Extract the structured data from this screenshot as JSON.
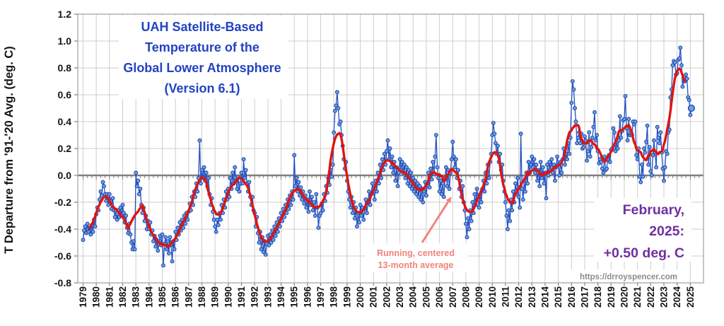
{
  "colors": {
    "title_blue": "#2243C0",
    "line_blue": "#2351C1",
    "marker_fill": "#6FA0DC",
    "marker_stroke": "#1D49B5",
    "red": "#E01410",
    "salmon": "#F0837B",
    "purple": "#7030A0",
    "url_gray": "#8C8C8C",
    "grid": "#CDCDCD",
    "frame": "#A6A6A6",
    "zero_line": "#7F7F7F"
  },
  "chart_data": {
    "type": "line",
    "title_lines": [
      "UAH Satellite-Based",
      "Temperature of the",
      "Global Lower Atmosphere",
      "(Version 6.1)"
    ],
    "title": "UAH Satellite-Based Temperature of the Global Lower Atmosphere (Version 6.1)",
    "ylabel": "T Departure from '91-'20 Avg. (deg. C)",
    "xlabel": "",
    "xlim": [
      1978.6,
      2026.0
    ],
    "ylim": [
      -0.8,
      1.2
    ],
    "grid": true,
    "legend": "none",
    "x_tick_years": [
      1979,
      1980,
      1981,
      1982,
      1983,
      1984,
      1985,
      1986,
      1987,
      1988,
      1989,
      1990,
      1991,
      1992,
      1993,
      1994,
      1995,
      1996,
      1997,
      1998,
      1999,
      2000,
      2001,
      2002,
      2003,
      2004,
      2005,
      2006,
      2007,
      2008,
      2009,
      2010,
      2011,
      2012,
      2013,
      2014,
      2015,
      2016,
      2017,
      2018,
      2019,
      2020,
      2021,
      2022,
      2023,
      2024,
      2025
    ],
    "y_ticks": {
      "values": [
        1.2,
        1.0,
        0.8,
        0.6,
        0.4,
        0.2,
        0.0,
        -0.2,
        -0.4,
        -0.6,
        -0.8
      ],
      "labels": [
        "1.2",
        "1.0",
        "0.8",
        "0.6",
        "0.4",
        "0.2",
        "0.0",
        "-0.2",
        "-0.4",
        "-0.6",
        "-0.8"
      ]
    },
    "series": [
      {
        "name": "Monthly temperature anomaly",
        "style": "line+markers",
        "color_key": "line_blue"
      },
      {
        "name": "Running, centered 13-month average",
        "style": "line",
        "color_key": "red",
        "derived": "centered 13-month mean of monthly series",
        "window": 13
      }
    ],
    "monthly_by_year": {
      "1979": [
        -0.48,
        -0.41,
        -0.38,
        -0.43,
        -0.36,
        -0.42,
        -0.39,
        -0.44,
        -0.37,
        -0.42,
        -0.33,
        -0.38
      ],
      "1980": [
        -0.29,
        -0.24,
        -0.26,
        -0.18,
        -0.12,
        -0.15,
        -0.05,
        -0.08,
        -0.14,
        -0.19,
        -0.14,
        -0.22
      ],
      "1981": [
        -0.14,
        -0.19,
        -0.25,
        -0.17,
        -0.26,
        -0.31,
        -0.26,
        -0.33,
        -0.26,
        -0.31,
        -0.24,
        -0.3
      ],
      "1982": [
        -0.22,
        -0.28,
        -0.35,
        -0.3,
        -0.39,
        -0.43,
        -0.36,
        -0.44,
        -0.5,
        -0.55,
        -0.49,
        -0.55
      ],
      "1983": [
        0.02,
        -0.08,
        -0.04,
        -0.14,
        -0.1,
        -0.22,
        -0.28,
        -0.24,
        -0.34,
        -0.3,
        -0.4,
        -0.34
      ],
      "1984": [
        -0.4,
        -0.35,
        -0.44,
        -0.41,
        -0.49,
        -0.45,
        -0.53,
        -0.48,
        -0.56,
        -0.51,
        -0.45,
        -0.52
      ],
      "1985": [
        -0.44,
        -0.67,
        -0.51,
        -0.46,
        -0.55,
        -0.49,
        -0.58,
        -0.46,
        -0.52,
        -0.64,
        -0.49,
        -0.55
      ],
      "1986": [
        -0.42,
        -0.48,
        -0.39,
        -0.44,
        -0.35,
        -0.41,
        -0.33,
        -0.39,
        -0.3,
        -0.36,
        -0.28,
        -0.33
      ],
      "1987": [
        -0.27,
        -0.21,
        -0.26,
        -0.16,
        -0.22,
        -0.12,
        -0.16,
        -0.06,
        -0.12,
        -0.02,
        0.26,
        -0.06
      ],
      "1988": [
        0.04,
        -0.02,
        0.06,
        -0.04,
        0.02,
        -0.08,
        -0.02,
        -0.14,
        -0.22,
        -0.17,
        -0.27,
        -0.33
      ],
      "1989": [
        -0.38,
        -0.42,
        -0.33,
        -0.37,
        -0.28,
        -0.33,
        -0.22,
        -0.28,
        -0.18,
        -0.24,
        -0.12,
        -0.18
      ],
      "1990": [
        -0.1,
        -0.16,
        -0.02,
        -0.1,
        0.02,
        -0.06,
        0.06,
        -0.04,
        -0.1,
        -0.01,
        -0.12,
        -0.06
      ],
      "1991": [
        0.02,
        -0.06,
        0.12,
        -0.02,
        0.04,
        -0.06,
        -0.12,
        -0.05,
        -0.16,
        -0.22,
        -0.16,
        -0.26
      ],
      "1992": [
        -0.28,
        -0.38,
        -0.31,
        -0.43,
        -0.5,
        -0.42,
        -0.55,
        -0.46,
        -0.57,
        -0.49,
        -0.59,
        -0.51
      ],
      "1993": [
        -0.45,
        -0.52,
        -0.44,
        -0.5,
        -0.41,
        -0.48,
        -0.38,
        -0.45,
        -0.35,
        -0.42,
        -0.32,
        -0.38
      ],
      "1994": [
        -0.28,
        -0.34,
        -0.25,
        -0.31,
        -0.22,
        -0.28,
        -0.18,
        -0.25,
        -0.15,
        -0.22,
        -0.12,
        -0.18
      ],
      "1995": [
        0.15,
        -0.08,
        -0.02,
        -0.12,
        -0.05,
        -0.15,
        -0.09,
        -0.18,
        -0.12,
        -0.21,
        -0.15,
        -0.24
      ],
      "1996": [
        -0.18,
        -0.27,
        -0.12,
        -0.22,
        -0.16,
        -0.26,
        -0.2,
        -0.3,
        -0.14,
        -0.24,
        -0.39,
        -0.3
      ],
      "1997": [
        -0.28,
        -0.21,
        -0.26,
        -0.14,
        -0.19,
        -0.08,
        -0.13,
        -0.02,
        -0.07,
        0.04,
        -0.01,
        0.08
      ],
      "1998": [
        0.32,
        0.48,
        0.52,
        0.62,
        0.5,
        0.38,
        0.4,
        0.3,
        0.22,
        0.12,
        0.05,
        0.1
      ],
      "1999": [
        -0.04,
        -0.12,
        -0.18,
        -0.24,
        -0.16,
        -0.28,
        -0.2,
        -0.32,
        -0.24,
        -0.38,
        -0.28,
        -0.35
      ],
      "2000": [
        -0.22,
        -0.3,
        -0.24,
        -0.33,
        -0.25,
        -0.18,
        -0.28,
        -0.2,
        -0.12,
        -0.22,
        -0.14,
        -0.06
      ],
      "2001": [
        -0.1,
        -0.18,
        -0.04,
        -0.12,
        0.02,
        -0.06,
        0.08,
        -0.02,
        0.12,
        0.04,
        0.16,
        0.08
      ],
      "2002": [
        0.18,
        0.26,
        0.12,
        0.2,
        0.06,
        0.14,
        0.02,
        0.1,
        -0.04,
        0.06,
        -0.08,
        0.02
      ],
      "2003": [
        0.12,
        0.04,
        0.1,
        0.02,
        0.08,
        -0.02,
        0.06,
        -0.06,
        0.04,
        -0.08,
        0.02,
        -0.1
      ],
      "2004": [
        -0.02,
        -0.12,
        -0.04,
        -0.14,
        -0.06,
        -0.16,
        -0.08,
        -0.18,
        -0.1,
        -0.2,
        -0.12,
        -0.05
      ],
      "2005": [
        -0.15,
        -0.06,
        0.02,
        -0.09,
        0.05,
        -0.03,
        0.1,
        0.01,
        0.14,
        0.3,
        0.06,
        -0.02
      ],
      "2006": [
        -0.12,
        -0.04,
        -0.14,
        -0.06,
        -0.16,
        -0.02,
        0.06,
        -0.08,
        0.04,
        -0.1,
        0.02,
        0.12
      ],
      "2007": [
        0.25,
        0.14,
        0.06,
        0.12,
        -0.02,
        0.04,
        -0.1,
        -0.04,
        -0.16,
        -0.08,
        -0.2,
        -0.26
      ],
      "2008": [
        -0.36,
        -0.46,
        -0.32,
        -0.4,
        -0.26,
        -0.34,
        -0.2,
        -0.28,
        -0.14,
        -0.22,
        -0.1,
        -0.16
      ],
      "2009": [
        -0.24,
        -0.14,
        -0.2,
        -0.1,
        -0.04,
        -0.12,
        0.02,
        -0.06,
        0.08,
        -0.02,
        0.1,
        0.16
      ],
      "2010": [
        0.3,
        0.39,
        0.31,
        0.24,
        0.16,
        0.22,
        0.1,
        0.16,
        0.04,
        0.08,
        -0.04,
        -0.12
      ],
      "2011": [
        -0.2,
        -0.3,
        -0.4,
        -0.26,
        -0.34,
        -0.18,
        -0.26,
        -0.12,
        -0.2,
        -0.06,
        -0.14,
        -0.02
      ],
      "2012": [
        -0.16,
        -0.24,
        0.31,
        -0.1,
        -0.18,
        -0.04,
        -0.12,
        0.02,
        -0.06,
        0.1,
        0.02,
        0.08
      ],
      "2013": [
        0.14,
        0.06,
        0.12,
        0.02,
        0.08,
        -0.04,
        0.04,
        -0.08,
        0.1,
        -0.02,
        0.06,
        -0.06
      ],
      "2014": [
        0.02,
        -0.17,
        0.08,
        0.0,
        0.1,
        0.04,
        0.12,
        0.02,
        0.08,
        -0.04,
        0.06,
        0.14
      ],
      "2015": [
        0.08,
        0.0,
        0.1,
        0.02,
        0.12,
        0.2,
        0.08,
        0.16,
        0.12,
        0.24,
        0.16,
        0.28
      ],
      "2016": [
        0.54,
        0.7,
        0.64,
        0.5,
        0.4,
        0.24,
        0.28,
        0.32,
        0.24,
        0.31,
        0.2,
        0.21
      ],
      "2017": [
        0.29,
        0.26,
        0.11,
        0.18,
        0.32,
        0.14,
        0.21,
        0.28,
        0.36,
        0.47,
        0.26,
        0.3
      ],
      "2018": [
        0.18,
        0.09,
        0.12,
        0.1,
        0.05,
        0.02,
        0.14,
        0.04,
        0.05,
        0.12,
        0.15,
        0.1
      ],
      "2019": [
        0.19,
        0.2,
        0.35,
        0.32,
        0.18,
        0.25,
        0.2,
        0.26,
        0.44,
        0.28,
        0.33,
        0.41
      ],
      "2020": [
        0.42,
        0.59,
        0.35,
        0.26,
        0.42,
        0.3,
        0.31,
        0.3,
        0.4,
        0.38,
        0.4,
        0.15
      ],
      "2021": [
        0.12,
        0.2,
        -0.01,
        -0.05,
        0.08,
        -0.01,
        0.2,
        0.17,
        0.25,
        0.37,
        0.08,
        0.21
      ],
      "2022": [
        0.03,
        0.0,
        0.15,
        0.26,
        0.17,
        0.06,
        0.36,
        0.28,
        0.24,
        0.32,
        0.17,
        0.05
      ],
      "2023": [
        -0.04,
        0.06,
        0.18,
        0.16,
        0.32,
        0.34,
        0.58,
        0.64,
        0.82,
        0.85,
        0.84,
        0.75
      ],
      "2024": [
        0.76,
        0.86,
        0.87,
        0.95,
        0.82,
        0.66,
        0.71,
        0.7,
        0.75,
        0.72,
        0.58,
        0.56
      ],
      "2025": [
        0.45,
        0.5
      ]
    },
    "last_point": {
      "month": "February, 2025",
      "value": 0.5,
      "highlighted": true
    },
    "annotations": {
      "running_avg": [
        "Running, centered",
        "13-month average"
      ],
      "latest": [
        "February,",
        "2025:",
        "+0.50 deg. C"
      ],
      "url": "https://drroyspencer.com"
    }
  }
}
